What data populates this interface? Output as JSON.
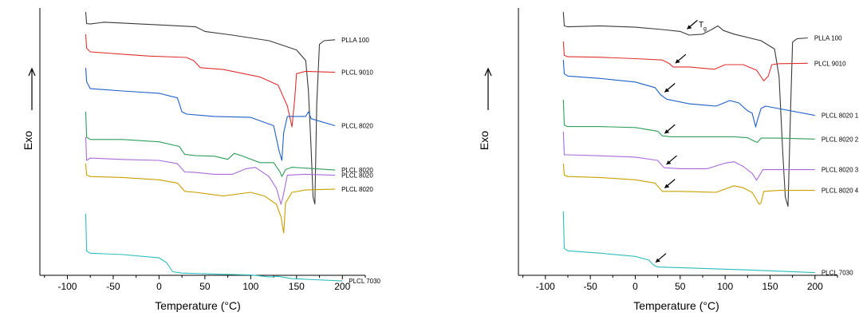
{
  "chart_data": [
    {
      "type": "line",
      "xlabel": "Temperature (°C)",
      "ylabel": "Exo",
      "xlim": [
        -130,
        225
      ],
      "xticks": [
        -100,
        -50,
        0,
        50,
        100,
        150,
        200
      ],
      "grid": false,
      "series": [
        {
          "name": "PLLA 100",
          "color": "#3a3a3a",
          "points": [
            [
              -80,
              0
            ],
            [
              -79,
              -0.25
            ],
            [
              -75,
              -0.26
            ],
            [
              -60,
              -0.22
            ],
            [
              -40,
              -0.24
            ],
            [
              0,
              -0.28
            ],
            [
              40,
              -0.32
            ],
            [
              50,
              -0.42
            ],
            [
              80,
              -0.5
            ],
            [
              120,
              -0.62
            ],
            [
              150,
              -0.82
            ],
            [
              160,
              -1.05
            ],
            [
              163,
              -1.7
            ],
            [
              166,
              -3.0
            ],
            [
              168,
              -4.0
            ],
            [
              170,
              -4.15
            ],
            [
              172,
              -2.0
            ],
            [
              175,
              -0.7
            ],
            [
              180,
              -0.62
            ],
            [
              192,
              -0.6
            ]
          ]
        },
        {
          "name": "PLCL 9010",
          "color": "#e03030",
          "points": [
            [
              -80,
              0
            ],
            [
              -79,
              -0.3
            ],
            [
              -75,
              -0.38
            ],
            [
              -40,
              -0.43
            ],
            [
              -10,
              -0.47
            ],
            [
              30,
              -0.5
            ],
            [
              38,
              -0.57
            ],
            [
              45,
              -0.72
            ],
            [
              70,
              -0.76
            ],
            [
              110,
              -0.92
            ],
            [
              130,
              -1.1
            ],
            [
              140,
              -1.55
            ],
            [
              145,
              -2.0
            ],
            [
              148,
              -1.4
            ],
            [
              150,
              -0.85
            ],
            [
              160,
              -0.8
            ],
            [
              192,
              -0.82
            ]
          ]
        },
        {
          "name": "PLCL 8020",
          "color": "#1f5fc8",
          "points": [
            [
              -80,
              0
            ],
            [
              -79,
              -0.3
            ],
            [
              -75,
              -0.45
            ],
            [
              -40,
              -0.5
            ],
            [
              0,
              -0.55
            ],
            [
              20,
              -0.65
            ],
            [
              25,
              -0.95
            ],
            [
              30,
              -1.0
            ],
            [
              60,
              -1.05
            ],
            [
              100,
              -1.07
            ],
            [
              125,
              -1.25
            ],
            [
              131,
              -1.8
            ],
            [
              134,
              -2.0
            ],
            [
              136,
              -1.4
            ],
            [
              140,
              -1.05
            ],
            [
              160,
              -1.05
            ],
            [
              163,
              -0.95
            ],
            [
              166,
              -1.1
            ],
            [
              192,
              -1.25
            ]
          ]
        },
        {
          "name": "PLCL 8020",
          "color": "#2e9e5a",
          "points": [
            [
              -80,
              0
            ],
            [
              -79,
              -0.55
            ],
            [
              -75,
              -0.6
            ],
            [
              -40,
              -0.6
            ],
            [
              0,
              -0.65
            ],
            [
              22,
              -0.75
            ],
            [
              28,
              -0.92
            ],
            [
              40,
              -0.95
            ],
            [
              60,
              -0.96
            ],
            [
              75,
              -1.03
            ],
            [
              82,
              -0.9
            ],
            [
              90,
              -0.95
            ],
            [
              110,
              -1.1
            ],
            [
              125,
              -1.1
            ],
            [
              132,
              -1.3
            ],
            [
              134,
              -1.4
            ],
            [
              138,
              -1.25
            ],
            [
              145,
              -1.2
            ],
            [
              192,
              -1.26
            ]
          ]
        },
        {
          "name": "PLCL 8020",
          "color": "#a86bd9",
          "points": [
            [
              -80,
              0
            ],
            [
              -79,
              -0.5
            ],
            [
              -75,
              -0.45
            ],
            [
              -40,
              -0.48
            ],
            [
              0,
              -0.5
            ],
            [
              20,
              -0.57
            ],
            [
              28,
              -0.75
            ],
            [
              40,
              -0.76
            ],
            [
              60,
              -0.8
            ],
            [
              80,
              -0.8
            ],
            [
              95,
              -0.68
            ],
            [
              105,
              -0.65
            ],
            [
              120,
              -0.85
            ],
            [
              128,
              -1.1
            ],
            [
              133,
              -1.45
            ],
            [
              135,
              -1.3
            ],
            [
              140,
              -0.82
            ],
            [
              160,
              -0.8
            ],
            [
              192,
              -0.82
            ]
          ]
        },
        {
          "name": "PLCL 8020",
          "color": "#c9a000",
          "points": [
            [
              -80,
              0
            ],
            [
              -79,
              -0.25
            ],
            [
              -75,
              -0.28
            ],
            [
              -40,
              -0.3
            ],
            [
              0,
              -0.35
            ],
            [
              20,
              -0.42
            ],
            [
              28,
              -0.6
            ],
            [
              40,
              -0.62
            ],
            [
              70,
              -0.7
            ],
            [
              100,
              -0.62
            ],
            [
              115,
              -0.7
            ],
            [
              128,
              -0.88
            ],
            [
              133,
              -1.15
            ],
            [
              136,
              -1.5
            ],
            [
              138,
              -0.85
            ],
            [
              145,
              -0.62
            ],
            [
              160,
              -0.57
            ],
            [
              192,
              -0.55
            ]
          ]
        },
        {
          "name": "PLCL 7030",
          "color": "#2dbcbc",
          "points": [
            [
              -80,
              0
            ],
            [
              -79,
              -0.8
            ],
            [
              -75,
              -0.85
            ],
            [
              -40,
              -0.88
            ],
            [
              0,
              -0.95
            ],
            [
              8,
              -1.05
            ],
            [
              15,
              -1.25
            ],
            [
              25,
              -1.28
            ],
            [
              60,
              -1.3
            ],
            [
              100,
              -1.32
            ],
            [
              120,
              -1.36
            ],
            [
              130,
              -1.35
            ],
            [
              145,
              -1.4
            ],
            [
              200,
              -1.45
            ]
          ]
        }
      ]
    },
    {
      "type": "line",
      "xlabel": "Temperature (°C)",
      "ylabel": "Exo",
      "xlim": [
        -130,
        225
      ],
      "xticks": [
        -100,
        -50,
        0,
        50,
        100,
        150,
        200
      ],
      "grid": false,
      "annotation": {
        "text": "T",
        "sub": "g"
      },
      "series": [
        {
          "name": "PLLA 100",
          "color": "#3a3a3a",
          "points": [
            [
              -80,
              0
            ],
            [
              -79,
              -0.3
            ],
            [
              -75,
              -0.32
            ],
            [
              -40,
              -0.3
            ],
            [
              0,
              -0.33
            ],
            [
              30,
              -0.38
            ],
            [
              50,
              -0.42
            ],
            [
              60,
              -0.5
            ],
            [
              75,
              -0.48
            ],
            [
              85,
              -0.38
            ],
            [
              92,
              -0.3
            ],
            [
              98,
              -0.4
            ],
            [
              110,
              -0.48
            ],
            [
              140,
              -0.62
            ],
            [
              155,
              -0.8
            ],
            [
              160,
              -1.4
            ],
            [
              164,
              -3.0
            ],
            [
              167,
              -4.0
            ],
            [
              170,
              -4.2
            ],
            [
              173,
              -2.0
            ],
            [
              175,
              -0.65
            ],
            [
              180,
              -0.58
            ],
            [
              192,
              -0.56
            ]
          ]
        },
        {
          "name": "PLCL 9010",
          "color": "#e03030",
          "points": [
            [
              -80,
              0
            ],
            [
              -79,
              -0.3
            ],
            [
              -75,
              -0.33
            ],
            [
              -40,
              -0.34
            ],
            [
              0,
              -0.37
            ],
            [
              30,
              -0.4
            ],
            [
              38,
              -0.48
            ],
            [
              42,
              -0.55
            ],
            [
              60,
              -0.55
            ],
            [
              88,
              -0.6
            ],
            [
              100,
              -0.5
            ],
            [
              120,
              -0.5
            ],
            [
              135,
              -0.62
            ],
            [
              143,
              -0.85
            ],
            [
              148,
              -0.75
            ],
            [
              152,
              -0.5
            ],
            [
              160,
              -0.48
            ],
            [
              192,
              -0.47
            ]
          ]
        },
        {
          "name": "PLCL 8020 1",
          "color": "#1f5fc8",
          "points": [
            [
              -80,
              0
            ],
            [
              -79,
              -0.3
            ],
            [
              -75,
              -0.35
            ],
            [
              -40,
              -0.4
            ],
            [
              0,
              -0.48
            ],
            [
              22,
              -0.6
            ],
            [
              28,
              -0.75
            ],
            [
              35,
              -0.85
            ],
            [
              60,
              -0.95
            ],
            [
              90,
              -1.0
            ],
            [
              105,
              -0.88
            ],
            [
              115,
              -0.93
            ],
            [
              125,
              -1.1
            ],
            [
              130,
              -1.15
            ],
            [
              134,
              -1.45
            ],
            [
              136,
              -1.3
            ],
            [
              140,
              -1.05
            ],
            [
              145,
              -1.0
            ],
            [
              200,
              -1.2
            ]
          ]
        },
        {
          "name": "PLCL 8020 2",
          "color": "#2e9e5a",
          "points": [
            [
              -80,
              0
            ],
            [
              -79,
              -0.55
            ],
            [
              -75,
              -0.58
            ],
            [
              -40,
              -0.58
            ],
            [
              0,
              -0.6
            ],
            [
              25,
              -0.68
            ],
            [
              30,
              -0.78
            ],
            [
              40,
              -0.8
            ],
            [
              80,
              -0.8
            ],
            [
              110,
              -0.8
            ],
            [
              125,
              -0.82
            ],
            [
              133,
              -0.9
            ],
            [
              136,
              -0.92
            ],
            [
              140,
              -0.83
            ],
            [
              160,
              -0.83
            ],
            [
              200,
              -0.85
            ]
          ]
        },
        {
          "name": "PLCL 8020 3",
          "color": "#a86bd9",
          "points": [
            [
              -80,
              0
            ],
            [
              -79,
              -0.5
            ],
            [
              -75,
              -0.5
            ],
            [
              -40,
              -0.52
            ],
            [
              0,
              -0.55
            ],
            [
              25,
              -0.62
            ],
            [
              32,
              -0.78
            ],
            [
              50,
              -0.8
            ],
            [
              80,
              -0.8
            ],
            [
              100,
              -0.68
            ],
            [
              110,
              -0.65
            ],
            [
              120,
              -0.75
            ],
            [
              130,
              -0.9
            ],
            [
              135,
              -1.05
            ],
            [
              138,
              -0.95
            ],
            [
              142,
              -0.82
            ],
            [
              160,
              -0.82
            ],
            [
              200,
              -0.82
            ]
          ]
        },
        {
          "name": "PLCL 8020 4",
          "color": "#c9a000",
          "points": [
            [
              -80,
              0
            ],
            [
              -79,
              -0.25
            ],
            [
              -75,
              -0.28
            ],
            [
              -40,
              -0.3
            ],
            [
              0,
              -0.35
            ],
            [
              22,
              -0.42
            ],
            [
              30,
              -0.6
            ],
            [
              50,
              -0.6
            ],
            [
              90,
              -0.62
            ],
            [
              110,
              -0.48
            ],
            [
              120,
              -0.52
            ],
            [
              130,
              -0.62
            ],
            [
              138,
              -0.88
            ],
            [
              140,
              -0.85
            ],
            [
              143,
              -0.6
            ],
            [
              160,
              -0.58
            ],
            [
              200,
              -0.58
            ]
          ]
        },
        {
          "name": "PLCL 7030",
          "color": "#2dbcbc",
          "points": [
            [
              -80,
              0
            ],
            [
              -79,
              -0.8
            ],
            [
              -75,
              -0.85
            ],
            [
              -40,
              -0.9
            ],
            [
              0,
              -0.97
            ],
            [
              15,
              -1.05
            ],
            [
              20,
              -1.15
            ],
            [
              25,
              -1.2
            ],
            [
              60,
              -1.22
            ],
            [
              120,
              -1.26
            ],
            [
              200,
              -1.32
            ]
          ]
        }
      ]
    }
  ]
}
